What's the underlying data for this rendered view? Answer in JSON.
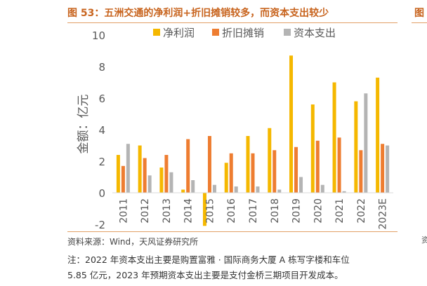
{
  "title": "图 53：五洲交通的净利润+折旧摊销较多，而资本支出较少",
  "right_edge_title": "图",
  "right_edge_note": "资",
  "chart_data": {
    "type": "bar",
    "categories": [
      "2011",
      "2012",
      "2013",
      "2014",
      "2015",
      "2016",
      "2017",
      "2018",
      "2019",
      "2020",
      "2021",
      "2022",
      "2023E"
    ],
    "series": [
      {
        "name": "净利润",
        "color": "#f5b800",
        "values": [
          2.4,
          3.0,
          1.6,
          0.2,
          -2.1,
          1.9,
          3.6,
          4.1,
          8.7,
          5.6,
          7.0,
          5.8,
          7.3
        ]
      },
      {
        "name": "折旧摊销",
        "color": "#ee7d31",
        "values": [
          1.7,
          2.2,
          2.4,
          3.4,
          3.6,
          2.5,
          2.5,
          2.7,
          2.9,
          3.3,
          3.5,
          2.7,
          3.1
        ]
      },
      {
        "name": "资本支出",
        "color": "#b4b4b4",
        "values": [
          3.1,
          1.1,
          1.3,
          0.8,
          0.5,
          0.4,
          0.4,
          0.2,
          1.0,
          0.5,
          0.1,
          6.3,
          3.0
        ]
      }
    ],
    "ylabel": "金额：亿元",
    "ylim": [
      -2,
      10
    ],
    "yticks": [
      -2,
      0,
      2,
      4,
      6,
      8,
      10
    ],
    "grid": false,
    "legend_position": "top"
  },
  "source": "资料来源：Wind，天风证券研究所",
  "note_line1": "注：2022 年资本支出主要是购置富雅 · 国际商务大厦 A 栋写字楼和车位",
  "note_line2": "5.85 亿元，2023 年预期资本支出主要是支付金桥三期项目开发成本。"
}
